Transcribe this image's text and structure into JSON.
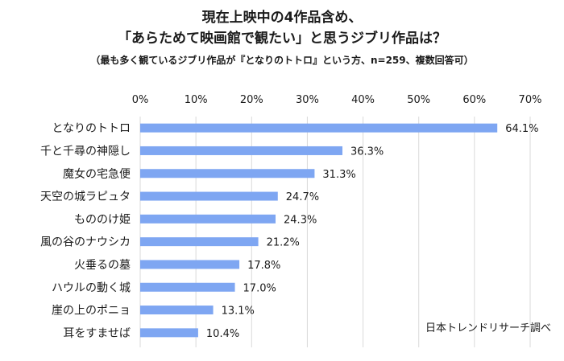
{
  "title_line1": "現在上映中の4作品含め、",
  "title_line2": "「あらためて映画館で観たい」と思うジブリ作品は？",
  "subtitle": "（最も多く観ているジブリ作品が『となりのトトロ』という方、n=259、複数回答可）",
  "credit": "日本トレンドリサーチ調べ",
  "colors": {
    "bar": "#7ea6f2",
    "grid": "#d9d9d9",
    "text": "#1a1a1a"
  },
  "chart_data": {
    "type": "bar",
    "orientation": "horizontal",
    "categories": [
      "となりのトトロ",
      "千と千尋の神隠し",
      "魔女の宅急便",
      "天空の城ラピュタ",
      "もののけ姫",
      "風の谷のナウシカ",
      "火垂るの墓",
      "ハウルの動く城",
      "崖の上のポニョ",
      "耳をすませば"
    ],
    "values": [
      64.1,
      36.3,
      31.3,
      24.7,
      24.3,
      21.2,
      17.8,
      17.0,
      13.1,
      10.4
    ],
    "value_labels": [
      "64.1%",
      "36.3%",
      "31.3%",
      "24.7%",
      "24.3%",
      "21.2%",
      "17.8%",
      "17.0%",
      "13.1%",
      "10.4%"
    ],
    "xlim": [
      0,
      70
    ],
    "xticks": [
      "0%",
      "10%",
      "20%",
      "30%",
      "40%",
      "50%",
      "60%",
      "70%"
    ],
    "grid": true
  }
}
